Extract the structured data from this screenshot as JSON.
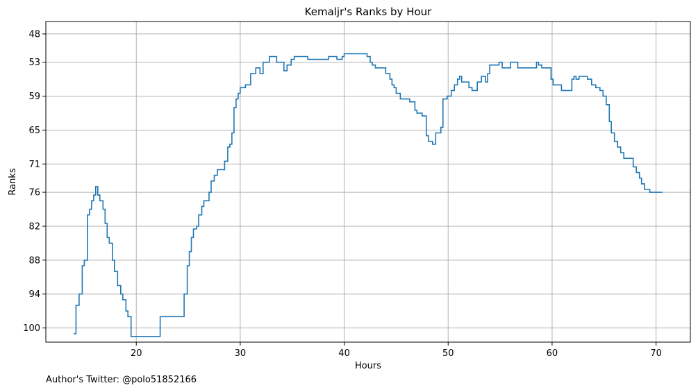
{
  "chart_data": {
    "type": "line",
    "step": true,
    "title": "Kemaljr's Ranks by Hour",
    "xlabel": "Hours",
    "ylabel": "Ranks",
    "xlim": [
      11.3,
      73.3
    ],
    "ylim": [
      102.5,
      45.8
    ],
    "y_inverted": true,
    "xticks": [
      20,
      30,
      40,
      50,
      60,
      70
    ],
    "yticks": [
      48,
      53,
      59,
      65,
      71,
      76,
      82,
      88,
      94,
      100
    ],
    "grid": true,
    "series_color": "#1f77b4",
    "series": [
      {
        "x": [
          14.0,
          14.2,
          14.5,
          14.8,
          15.0,
          15.3,
          15.5,
          15.7,
          15.9,
          16.1,
          16.3,
          16.5,
          16.8,
          17.0,
          17.2,
          17.4,
          17.7,
          17.9,
          18.2,
          18.5,
          18.7,
          19.0,
          19.2,
          19.5,
          20.1,
          22.3,
          24.6,
          24.9,
          25.1,
          25.3,
          25.5,
          25.8,
          26.0,
          26.3,
          26.5,
          27.0,
          27.2,
          27.5,
          27.8,
          28.5,
          28.8,
          29.0,
          29.2,
          29.4,
          29.6,
          29.8,
          30.0,
          30.5,
          31.0,
          31.5,
          31.9,
          32.2,
          32.8,
          33.5,
          34.2,
          34.5,
          34.9,
          35.2,
          35.4,
          36.5,
          37.0,
          38.5,
          39.3,
          39.8,
          40.0,
          40.8,
          42.2,
          42.5,
          42.7,
          43.0,
          44.0,
          44.4,
          44.6,
          44.8,
          45.0,
          45.4,
          46.3,
          46.8,
          47.0,
          47.5,
          47.9,
          48.1,
          48.5,
          48.8,
          49.3,
          49.5,
          49.9,
          50.3,
          50.6,
          50.9,
          51.1,
          51.3,
          51.5,
          52.0,
          52.3,
          52.8,
          53.2,
          53.6,
          53.8,
          54.0,
          54.9,
          55.2,
          56.0,
          56.7,
          58.5,
          58.7,
          59.0,
          59.9,
          60.1,
          60.9,
          61.9,
          62.1,
          62.3,
          62.6,
          63.4,
          63.8,
          64.2,
          64.6,
          64.9,
          65.2,
          65.5,
          65.7,
          66.0,
          66.3,
          66.6,
          66.9,
          67.8,
          68.1,
          68.4,
          68.6,
          68.9,
          69.4,
          70.6
        ],
        "y": [
          101.0,
          96.0,
          94.0,
          89.0,
          88.0,
          80.0,
          79.0,
          77.5,
          76.5,
          75.0,
          76.5,
          77.5,
          79.0,
          81.5,
          84.0,
          85.0,
          88.0,
          90.0,
          92.5,
          94.0,
          95.0,
          97.0,
          98.0,
          101.5,
          101.5,
          98.0,
          94.0,
          89.0,
          86.5,
          84.0,
          82.5,
          82.0,
          80.0,
          78.5,
          77.5,
          76.0,
          74.0,
          73.0,
          72.0,
          70.5,
          68.0,
          67.5,
          65.5,
          61.0,
          59.5,
          58.5,
          57.5,
          57.0,
          55.0,
          54.0,
          55.0,
          53.0,
          52.0,
          53.0,
          54.5,
          53.5,
          52.5,
          52.0,
          52.0,
          52.5,
          52.5,
          52.0,
          52.5,
          52.0,
          51.5,
          51.5,
          52.0,
          53.0,
          53.5,
          54.0,
          55.0,
          56.0,
          57.0,
          57.5,
          58.5,
          59.5,
          60.0,
          61.5,
          62.0,
          62.5,
          66.0,
          67.0,
          67.5,
          65.5,
          64.5,
          59.5,
          59.0,
          58.0,
          57.0,
          56.0,
          55.5,
          56.5,
          56.5,
          57.5,
          58.0,
          56.5,
          55.5,
          56.5,
          55.0,
          53.5,
          53.0,
          54.0,
          53.0,
          54.0,
          53.0,
          53.5,
          54.0,
          56.0,
          57.0,
          58.0,
          56.0,
          55.5,
          56.0,
          55.5,
          56.0,
          57.0,
          57.5,
          58.0,
          59.0,
          60.5,
          63.5,
          65.5,
          67.0,
          68.0,
          69.0,
          70.0,
          71.5,
          72.5,
          73.5,
          74.5,
          75.5,
          76.0,
          76.0
        ]
      }
    ]
  },
  "footer": {
    "text": "Author's Twitter: @polo51852166"
  }
}
